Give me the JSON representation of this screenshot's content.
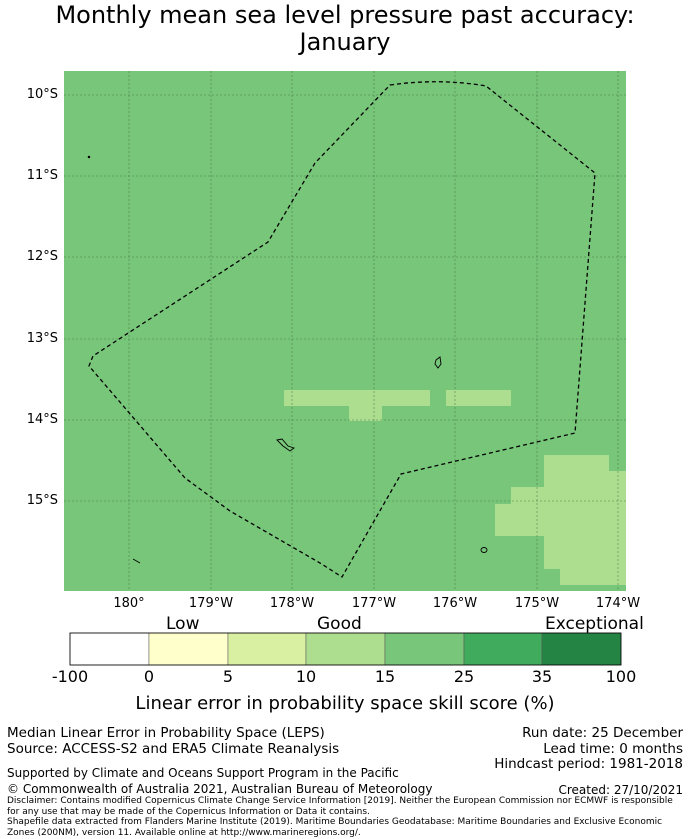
{
  "title_line1": "Monthly mean sea level pressure past accuracy:",
  "title_line2": "January",
  "map": {
    "background_color": "#78c679",
    "grid_lat": [
      "10°S",
      "11°S",
      "12°S",
      "13°S",
      "14°S",
      "15°S"
    ],
    "grid_lon": [
      "180°",
      "179°W",
      "178°W",
      "177°W",
      "176°W",
      "175°W",
      "174°W"
    ],
    "boundary_line": "dashed EEZ boundary",
    "low_skill_color": "#addd8e"
  },
  "colorbar": {
    "categories": [
      "Low",
      "Good",
      "Exceptional"
    ],
    "ticks": [
      "-100",
      "0",
      "5",
      "10",
      "15",
      "25",
      "35",
      "100"
    ],
    "colors": [
      "#ffffff",
      "#ffffcc",
      "#d9f0a3",
      "#addd8e",
      "#78c679",
      "#41ab5d",
      "#238443"
    ],
    "label": "Linear error in probability space skill score (%)"
  },
  "info": {
    "metric": "Median Linear Error in Probability Space (LEPS)",
    "source": "Source: ACCESS-S2 and ERA5 Climate Reanalysis",
    "run_date": "Run date: 25 December",
    "lead_time": "Lead time: 0 months",
    "hindcast": "Hindcast period: 1981-2018",
    "supported": "Supported by Climate and Oceans Support Program in the Pacific",
    "copyright": "© Commonwealth of Australia 2021, Australian Bureau of Meteorology",
    "created": "Created: 27/10/2021",
    "disclaimer": "Disclaimer: Contains modified Copernicus Climate Change Service Information [2019]. Neither the European Commission nor ECMWF is responsible for any use that may be made of the Copernicus Information or Data it contains.",
    "shapefile": "Shapefile data extracted from Flanders Marine Institute (2019). Maritime Boundaries Geodatabase: Maritime Boundaries and Exclusive Economic Zones (200NM), version 11. Available online at http://www.marineregions.org/."
  }
}
